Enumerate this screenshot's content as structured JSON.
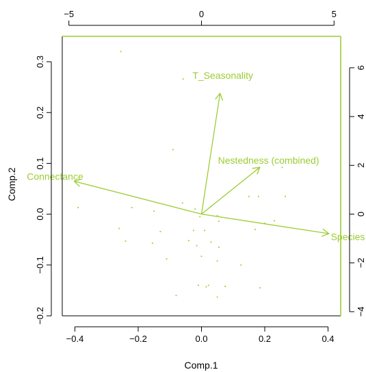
{
  "chart_data": {
    "type": "scatter",
    "subtype": "biplot",
    "xlabel": "Comp.1",
    "ylabel": "Comp.2",
    "xlim": [
      -0.44,
      0.44
    ],
    "ylim": [
      -0.2,
      0.35
    ],
    "x_ticks": [
      -0.4,
      -0.2,
      0.0,
      0.2,
      0.4
    ],
    "x_tick_labels": [
      "−0.4",
      "−0.2",
      "0.0",
      "0.2",
      "0.4"
    ],
    "y_ticks": [
      -0.2,
      -0.1,
      0.0,
      0.1,
      0.2,
      0.3
    ],
    "y_tick_labels": [
      "−0.2",
      "−0.1",
      "0.0",
      "0.1",
      "0.2",
      "0.3"
    ],
    "top_ticks": [
      -5,
      0,
      5
    ],
    "top_tick_labels": [
      "−5",
      "0",
      "5"
    ],
    "right_ticks": [
      -4,
      -2,
      0,
      2,
      4,
      6
    ],
    "right_tick_labels": [
      "−4",
      "−2",
      "0",
      "2",
      "4",
      "6"
    ],
    "loadings_range": {
      "top": [
        -5.25,
        5.25
      ],
      "right": [
        -4.17,
        7.29
      ]
    },
    "grid": false,
    "legend": "none",
    "colors": {
      "axes": "#000000",
      "loadings": "#9acd32"
    },
    "scores": [
      {
        "x": -0.255,
        "y": 0.32
      },
      {
        "x": -0.058,
        "y": 0.266
      },
      {
        "x": -0.09,
        "y": 0.127
      },
      {
        "x": -0.39,
        "y": 0.013
      },
      {
        "x": -0.22,
        "y": 0.013
      },
      {
        "x": -0.15,
        "y": 0.006
      },
      {
        "x": -0.06,
        "y": 0.022
      },
      {
        "x": -0.02,
        "y": 0.01
      },
      {
        "x": -0.005,
        "y": -0.005
      },
      {
        "x": 0.03,
        "y": 0.015
      },
      {
        "x": 0.05,
        "y": -0.003
      },
      {
        "x": 0.055,
        "y": -0.014
      },
      {
        "x": -0.26,
        "y": -0.028
      },
      {
        "x": -0.24,
        "y": -0.053
      },
      {
        "x": -0.13,
        "y": -0.034
      },
      {
        "x": -0.155,
        "y": -0.057
      },
      {
        "x": -0.11,
        "y": -0.088
      },
      {
        "x": -0.04,
        "y": -0.052
      },
      {
        "x": -0.025,
        "y": -0.032
      },
      {
        "x": 0.01,
        "y": -0.032
      },
      {
        "x": 0.03,
        "y": -0.055
      },
      {
        "x": -0.015,
        "y": -0.062
      },
      {
        "x": 0.055,
        "y": -0.065
      },
      {
        "x": 0.0,
        "y": -0.083
      },
      {
        "x": 0.05,
        "y": -0.092
      },
      {
        "x": 0.125,
        "y": -0.1
      },
      {
        "x": -0.01,
        "y": -0.14
      },
      {
        "x": 0.015,
        "y": -0.143
      },
      {
        "x": 0.022,
        "y": -0.14
      },
      {
        "x": 0.075,
        "y": -0.142
      },
      {
        "x": 0.185,
        "y": -0.145
      },
      {
        "x": 0.05,
        "y": -0.163
      },
      {
        "x": -0.08,
        "y": -0.16
      },
      {
        "x": 0.17,
        "y": -0.03
      },
      {
        "x": 0.2,
        "y": -0.018
      },
      {
        "x": 0.23,
        "y": -0.013
      },
      {
        "x": 0.15,
        "y": 0.035
      },
      {
        "x": 0.18,
        "y": 0.035
      },
      {
        "x": 0.265,
        "y": 0.035
      },
      {
        "x": 0.255,
        "y": 0.092
      }
    ],
    "loadings": [
      {
        "name": "T_Seasonality",
        "x": 0.7,
        "y": 4.95
      },
      {
        "name": "Nestedness (combined)",
        "x": 2.2,
        "y": 1.92
      },
      {
        "name": "Connectance",
        "x": -4.8,
        "y": 1.35
      },
      {
        "name": "Species",
        "x": 4.8,
        "y": -0.8
      }
    ]
  }
}
